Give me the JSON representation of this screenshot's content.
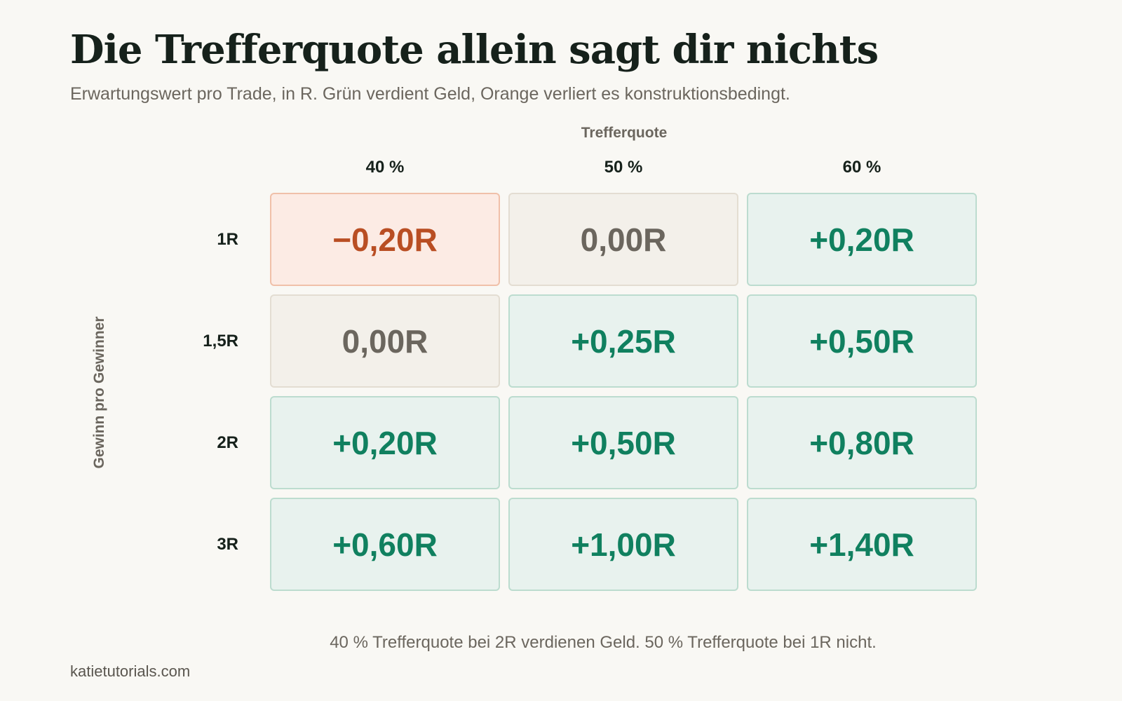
{
  "title": "Die Trefferquote allein sagt dir nichts",
  "subtitle": "Erwartungswert pro Trade, in R. Grün verdient Geld, Orange verliert es konstruktionsbedingt.",
  "note": "40 % Trefferquote bei 2R verdienen Geld. 50 % Trefferquote bei 1R nicht.",
  "source": "katietutorials.com",
  "colors": {
    "background": "#f9f8f4",
    "positive_text": "#10805f",
    "positive_fill": "#e8f2ee",
    "negative_text": "#b94e23",
    "negative_fill": "#fcebe4",
    "neutral_text": "#6b665e",
    "neutral_fill": "#f3f0ea"
  },
  "chart_data": {
    "type": "heatmap",
    "xlabel": "Trefferquote",
    "ylabel": "Gewinn pro Gewinner",
    "columns": [
      "40 %",
      "50 %",
      "60 %"
    ],
    "rows": [
      "1R",
      "1,5R",
      "2R",
      "3R"
    ],
    "values": [
      [
        -0.2,
        0.0,
        0.2
      ],
      [
        0.0,
        0.25,
        0.5
      ],
      [
        0.2,
        0.5,
        0.8
      ],
      [
        0.6,
        1.0,
        1.4
      ]
    ],
    "cell_labels": [
      [
        "−0,20R",
        "0,00R",
        "+0,20R"
      ],
      [
        "0,00R",
        "+0,25R",
        "+0,50R"
      ],
      [
        "+0,20R",
        "+0,50R",
        "+0,80R"
      ],
      [
        "+0,60R",
        "+1,00R",
        "+1,40R"
      ]
    ],
    "legend": "none",
    "grid": false
  }
}
